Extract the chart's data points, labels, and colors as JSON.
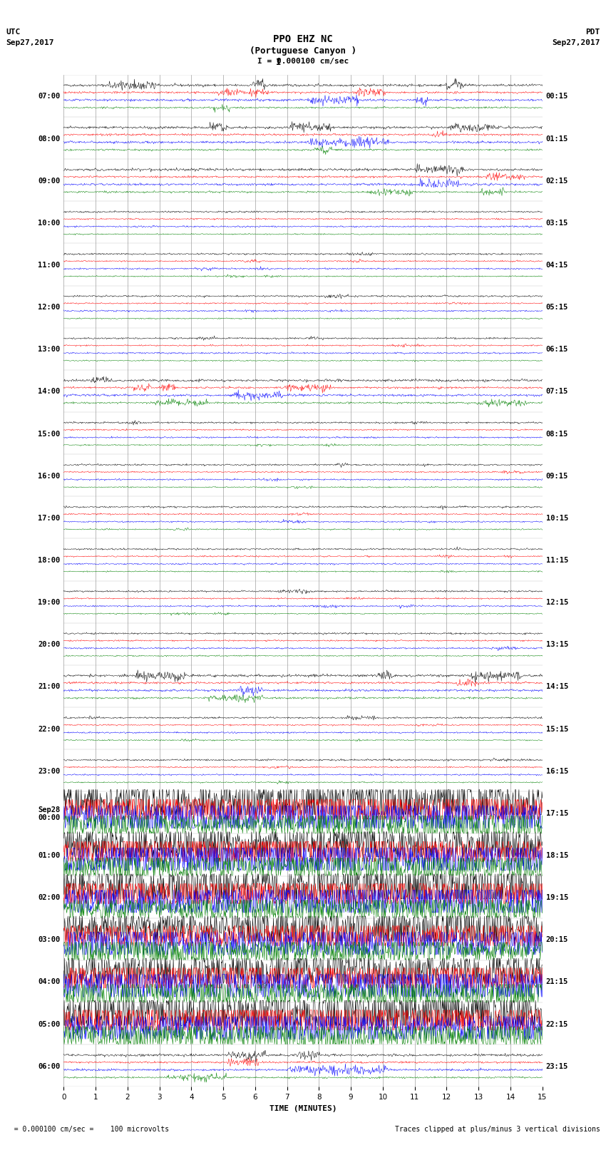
{
  "title_line1": "PPO EHZ NC",
  "title_line2": "(Portuguese Canyon )",
  "scale_label": "I = 0.000100 cm/sec",
  "utc_label": "UTC\nSep27,2017",
  "pdt_label": "PDT\nSep27,2017",
  "footer_left": "  = 0.000100 cm/sec =    100 microvolts",
  "footer_right": "Traces clipped at plus/minus 3 vertical divisions",
  "xlabel": "TIME (MINUTES)",
  "left_times": [
    "07:00",
    "08:00",
    "09:00",
    "10:00",
    "11:00",
    "12:00",
    "13:00",
    "14:00",
    "15:00",
    "16:00",
    "17:00",
    "18:00",
    "19:00",
    "20:00",
    "21:00",
    "22:00",
    "23:00",
    "Sep28\n00:00",
    "01:00",
    "02:00",
    "03:00",
    "04:00",
    "05:00",
    "06:00"
  ],
  "right_times": [
    "00:15",
    "01:15",
    "02:15",
    "03:15",
    "04:15",
    "05:15",
    "06:15",
    "07:15",
    "08:15",
    "09:15",
    "10:15",
    "11:15",
    "12:15",
    "13:15",
    "14:15",
    "15:15",
    "16:15",
    "17:15",
    "18:15",
    "19:15",
    "20:15",
    "21:15",
    "22:15",
    "23:15"
  ],
  "n_rows": 24,
  "n_samples": 900,
  "bg_color": "#ffffff",
  "colors": [
    "black",
    "red",
    "blue",
    "green"
  ],
  "grid_color": "#888888",
  "title_fontsize": 10,
  "label_fontsize": 8,
  "tick_fontsize": 7.5,
  "noisy_rows": [
    17,
    18,
    19,
    20,
    21,
    22
  ],
  "moderate_rows": [
    0,
    1,
    2,
    7,
    14,
    23
  ],
  "xmin": 0,
  "xmax": 15
}
